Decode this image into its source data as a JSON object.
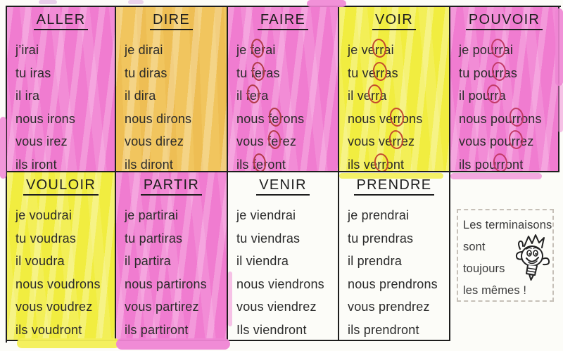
{
  "colors": {
    "highlight_pink": "#f07cd0",
    "highlight_orange": "#f1c55e",
    "highlight_yellow": "#f1ed40",
    "ink": "#2a2a2a",
    "border": "#1d1d1d",
    "annotation_red_faire": "#b23a48",
    "annotation_red_voir": "#c44a2e",
    "annotation_red_pouvoir": "#c23a67"
  },
  "table": {
    "cells": [
      {
        "title": "ALLER",
        "highlight": "pink",
        "forms": [
          "j’irai",
          "tu iras",
          "il ira",
          "nous irons",
          "vous irez",
          "ils iront"
        ]
      },
      {
        "title": "DIRE",
        "highlight": "orange",
        "forms": [
          "je dirai",
          "tu diras",
          "il dira",
          "nous dirons",
          "vous direz",
          "ils diront"
        ]
      },
      {
        "title": "FAIRE",
        "highlight": "pink",
        "circle_color": "#b23a48",
        "forms": [
          "je f((e))rai",
          "tu f((e))ras",
          "il f((e))ra",
          "nous f((e))rons",
          "vous f((e))rez",
          "ils f((e))ront"
        ]
      },
      {
        "title": "VOIR",
        "highlight": "yellow",
        "circle_color": "#c44a2e",
        "forms": [
          "je ve((rr))ai",
          "tu ve((rr))as",
          "il ve((rr))a",
          "nous ve((rr))ons",
          "vous ve((rr))ez",
          "ils ve((rr))ont"
        ]
      },
      {
        "title": "POUVOIR",
        "highlight": "pink",
        "circle_color": "#c23a67",
        "forms": [
          "je pou((rr))ai",
          "tu pou((rr))as",
          "il pou((rr))a",
          "nous pou((rr))ons",
          "vous pou((rr))ez",
          "ils pou((rr))ont"
        ]
      },
      {
        "title": "VOULOIR",
        "highlight": "yellow",
        "forms": [
          "je voudrai",
          "tu voudras",
          "il voudra",
          "nous voudrons",
          "vous voudrez",
          "ils voudront"
        ]
      },
      {
        "title": "PARTIR",
        "highlight": "pink",
        "forms": [
          "je partirai",
          "tu partiras",
          "il partira",
          "nous partirons",
          "vous partirez",
          "ils partiront"
        ]
      },
      {
        "title": "VENIR",
        "highlight": "none",
        "forms": [
          "je viendrai",
          "tu viendras",
          "il viendra",
          "nous viendrons",
          "vous viendrez",
          "Ils viendront"
        ]
      },
      {
        "title": "PRENDRE",
        "highlight": "none",
        "forms": [
          "je prendrai",
          "tu prendras",
          "il prendra",
          "nous prendrons",
          "vous prendrez",
          "ils prendront"
        ]
      }
    ]
  },
  "note": {
    "lines": [
      "Les terminaisons",
      "sont",
      "toujours",
      "les mêmes !"
    ],
    "mascot": "lightbulb-character-with-crown-thumbs-up"
  }
}
